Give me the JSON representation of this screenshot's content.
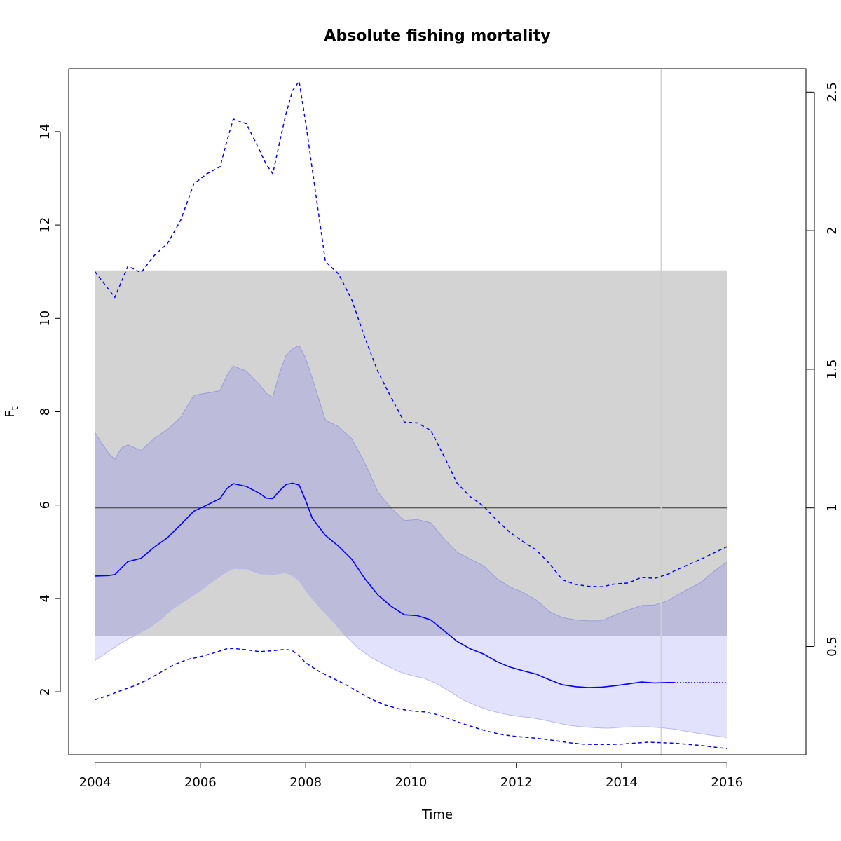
{
  "chart_data": {
    "type": "line",
    "title": "Absolute fishing mortality",
    "xlabel": "Time",
    "ylabel_main": "F",
    "ylabel_sub": "t",
    "xlim": [
      2003.5,
      2017.5
    ],
    "ylim": [
      0.65,
      15.35
    ],
    "x_ticks": [
      2004,
      2006,
      2008,
      2010,
      2012,
      2014,
      2016
    ],
    "y_ticks": [
      2,
      4,
      6,
      8,
      10,
      12,
      14
    ],
    "right_axis": {
      "ticks": [
        0.5,
        1,
        1.5,
        2,
        2.5
      ],
      "tick_labels": [
        "0.5",
        "1",
        "1.5",
        "2",
        "2.5"
      ],
      "scale_factor": 5.94
    },
    "reference": {
      "fmsy": 5.94,
      "fmsy_band": [
        3.2,
        11.03
      ],
      "band_x": [
        2004,
        2016
      ],
      "last_obs_time": 2014.75
    },
    "colors": {
      "series": "#0000ff",
      "ci_fill": "#e2e2fd",
      "band_fill": "#d3d3d3",
      "overlap_fill": "#bcbcda",
      "ref_line": "#333333",
      "vline": "#d0d0d0"
    },
    "series": [
      {
        "role": "estimate",
        "x": [
          2004.0,
          2004.25,
          2004.375,
          2004.625,
          2004.875,
          2005.125,
          2005.375,
          2005.625,
          2005.875,
          2006.125,
          2006.375,
          2006.5,
          2006.625,
          2006.875,
          2007.125,
          2007.25,
          2007.375,
          2007.5,
          2007.625,
          2007.75,
          2007.875,
          2008.0,
          2008.125,
          2008.375,
          2008.625,
          2008.875,
          2009.125,
          2009.375,
          2009.625,
          2009.875,
          2010.125,
          2010.375,
          2010.625,
          2010.875,
          2011.125,
          2011.375,
          2011.625,
          2011.875,
          2012.125,
          2012.375,
          2012.625,
          2012.875,
          2013.125,
          2013.375,
          2013.625,
          2013.875,
          2014.125,
          2014.375,
          2014.625,
          2014.875,
          2015.0
        ],
        "y": [
          4.48,
          4.49,
          4.51,
          4.79,
          4.86,
          5.1,
          5.3,
          5.58,
          5.87,
          6.0,
          6.14,
          6.35,
          6.46,
          6.4,
          6.25,
          6.15,
          6.14,
          6.3,
          6.44,
          6.47,
          6.43,
          6.1,
          5.72,
          5.35,
          5.12,
          4.84,
          4.42,
          4.07,
          3.83,
          3.65,
          3.63,
          3.54,
          3.31,
          3.08,
          2.92,
          2.81,
          2.65,
          2.53,
          2.45,
          2.38,
          2.26,
          2.15,
          2.11,
          2.09,
          2.1,
          2.13,
          2.17,
          2.21,
          2.19,
          2.2,
          2.2
        ]
      },
      {
        "role": "estimate-projection",
        "x": [
          2015.0,
          2016.0
        ],
        "y": [
          2.2,
          2.2
        ]
      },
      {
        "role": "ci-upper",
        "x": [
          2004.0,
          2004.25,
          2004.375,
          2004.5,
          2004.625,
          2004.875,
          2005.125,
          2005.375,
          2005.625,
          2005.875,
          2006.125,
          2006.375,
          2006.5,
          2006.625,
          2006.875,
          2007.125,
          2007.25,
          2007.375,
          2007.5,
          2007.625,
          2007.75,
          2007.875,
          2008.0,
          2008.125,
          2008.375,
          2008.625,
          2008.875,
          2009.125,
          2009.375,
          2009.625,
          2009.875,
          2010.125,
          2010.375,
          2010.625,
          2010.875,
          2011.125,
          2011.375,
          2011.625,
          2011.875,
          2012.125,
          2012.375,
          2012.625,
          2012.875,
          2013.125,
          2013.375,
          2013.625,
          2013.875,
          2014.125,
          2014.375,
          2014.625,
          2014.875,
          2015.0,
          2015.25,
          2015.5,
          2015.75,
          2016.0
        ],
        "y": [
          7.55,
          7.12,
          6.98,
          7.22,
          7.29,
          7.17,
          7.43,
          7.62,
          7.88,
          8.35,
          8.4,
          8.45,
          8.77,
          8.98,
          8.87,
          8.58,
          8.4,
          8.31,
          8.82,
          9.2,
          9.35,
          9.42,
          9.15,
          8.72,
          7.82,
          7.68,
          7.42,
          6.9,
          6.27,
          5.93,
          5.67,
          5.69,
          5.62,
          5.28,
          4.99,
          4.84,
          4.7,
          4.43,
          4.25,
          4.13,
          3.97,
          3.72,
          3.59,
          3.54,
          3.52,
          3.52,
          3.65,
          3.75,
          3.85,
          3.86,
          3.95,
          4.04,
          4.19,
          4.34,
          4.58,
          4.78
        ]
      },
      {
        "role": "ci-lower",
        "x": [
          2004.0,
          2004.25,
          2004.5,
          2004.75,
          2005.0,
          2005.25,
          2005.5,
          2005.75,
          2006.0,
          2006.25,
          2006.5,
          2006.625,
          2006.875,
          2007.125,
          2007.375,
          2007.625,
          2007.75,
          2007.875,
          2008.0,
          2008.25,
          2008.5,
          2008.75,
          2009.0,
          2009.25,
          2009.5,
          2009.75,
          2010.0,
          2010.25,
          2010.5,
          2010.75,
          2011.0,
          2011.25,
          2011.5,
          2011.75,
          2012.0,
          2012.25,
          2012.5,
          2012.75,
          2013.0,
          2013.25,
          2013.5,
          2013.75,
          2014.0,
          2014.25,
          2014.5,
          2014.75,
          2015.0,
          2015.5,
          2016.0
        ],
        "y": [
          2.67,
          2.86,
          3.05,
          3.2,
          3.35,
          3.55,
          3.8,
          3.98,
          4.17,
          4.38,
          4.57,
          4.64,
          4.63,
          4.53,
          4.51,
          4.55,
          4.48,
          4.38,
          4.17,
          3.83,
          3.53,
          3.21,
          2.93,
          2.73,
          2.58,
          2.44,
          2.35,
          2.29,
          2.17,
          2.0,
          1.82,
          1.7,
          1.6,
          1.53,
          1.48,
          1.45,
          1.4,
          1.34,
          1.28,
          1.25,
          1.23,
          1.22,
          1.24,
          1.25,
          1.25,
          1.23,
          1.2,
          1.1,
          1.02
        ]
      },
      {
        "role": "upper-dashed",
        "x": [
          2004.0,
          2004.375,
          2004.625,
          2004.875,
          2005.125,
          2005.375,
          2005.625,
          2005.875,
          2006.125,
          2006.375,
          2006.5,
          2006.625,
          2006.875,
          2007.125,
          2007.25,
          2007.375,
          2007.5,
          2007.625,
          2007.75,
          2007.875,
          2008.0,
          2008.125,
          2008.375,
          2008.625,
          2008.875,
          2009.125,
          2009.375,
          2009.625,
          2009.875,
          2010.125,
          2010.375,
          2010.625,
          2010.875,
          2011.125,
          2011.375,
          2011.625,
          2011.875,
          2012.125,
          2012.375,
          2012.625,
          2012.875,
          2013.125,
          2013.375,
          2013.625,
          2013.875,
          2014.125,
          2014.375,
          2014.625,
          2014.875,
          2015.0,
          2015.5,
          2016.0
        ],
        "y": [
          11.0,
          10.45,
          11.12,
          10.98,
          11.35,
          11.6,
          12.1,
          12.88,
          13.1,
          13.25,
          13.78,
          14.27,
          14.17,
          13.6,
          13.3,
          13.1,
          13.75,
          14.38,
          14.88,
          15.08,
          14.2,
          13.2,
          11.22,
          10.95,
          10.4,
          9.58,
          8.85,
          8.3,
          7.78,
          7.76,
          7.6,
          7.05,
          6.47,
          6.18,
          5.98,
          5.68,
          5.42,
          5.22,
          5.04,
          4.75,
          4.4,
          4.3,
          4.26,
          4.25,
          4.31,
          4.33,
          4.45,
          4.43,
          4.52,
          4.59,
          4.84,
          5.11
        ]
      },
      {
        "role": "lower-dashed",
        "x": [
          2004.0,
          2004.25,
          2004.5,
          2004.75,
          2005.0,
          2005.25,
          2005.5,
          2005.75,
          2006.0,
          2006.25,
          2006.5,
          2006.625,
          2006.875,
          2007.125,
          2007.375,
          2007.625,
          2007.75,
          2007.875,
          2008.0,
          2008.25,
          2008.5,
          2008.75,
          2009.0,
          2009.25,
          2009.5,
          2009.75,
          2010.0,
          2010.25,
          2010.5,
          2010.75,
          2011.0,
          2011.25,
          2011.5,
          2011.75,
          2012.0,
          2012.25,
          2012.5,
          2012.75,
          2013.0,
          2013.25,
          2013.5,
          2013.75,
          2014.0,
          2014.25,
          2014.5,
          2014.75,
          2015.0,
          2015.5,
          2016.0
        ],
        "y": [
          1.83,
          1.92,
          2.03,
          2.13,
          2.26,
          2.42,
          2.58,
          2.69,
          2.75,
          2.83,
          2.92,
          2.93,
          2.9,
          2.86,
          2.88,
          2.91,
          2.88,
          2.77,
          2.62,
          2.44,
          2.3,
          2.16,
          2.0,
          1.84,
          1.72,
          1.64,
          1.59,
          1.57,
          1.51,
          1.41,
          1.31,
          1.22,
          1.14,
          1.08,
          1.04,
          1.02,
          0.99,
          0.95,
          0.91,
          0.88,
          0.87,
          0.87,
          0.88,
          0.9,
          0.92,
          0.91,
          0.9,
          0.85,
          0.78
        ]
      }
    ]
  }
}
